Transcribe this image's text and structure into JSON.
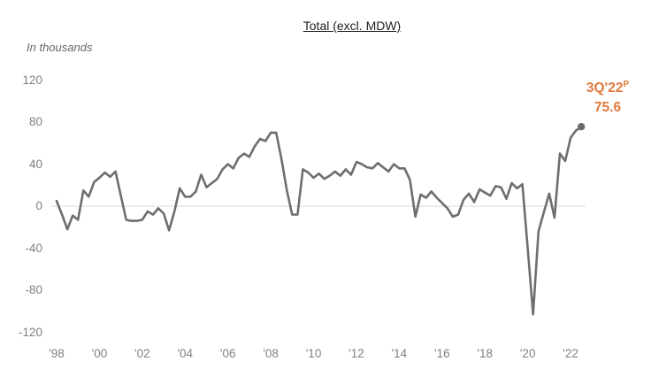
{
  "title": "Total (excl. MDW)",
  "y_axis_note": "In thousands",
  "annotation": {
    "quarter_label": "3Q'22",
    "superscript": "P",
    "value": "75.6"
  },
  "colors": {
    "line": "#6e6e6e",
    "marker": "#6a6a6a",
    "accent_orange": "#e0793c",
    "axis_text": "#808080",
    "zero_line": "#d9d9d9",
    "title_text": "#1f1f1f"
  },
  "chart_data": {
    "type": "line",
    "title": "Total (excl. MDW)",
    "unit_note": "In thousands",
    "frequency": "quarterly",
    "x_start": "1Q'98",
    "x_end": "3Q'22",
    "x_tick_labels": [
      "'98",
      "'00",
      "'02",
      "'04",
      "'06",
      "'08",
      "'10",
      "'12",
      "'14",
      "'16",
      "'18",
      "'20",
      "'22"
    ],
    "y_ticks": [
      120,
      80,
      40,
      0,
      -40,
      -80,
      -120
    ],
    "ylim": [
      -120,
      120
    ],
    "grid": "zero-line-only",
    "legend": "none",
    "marker_on_last_point": true,
    "last_point_label": "3Q'22 P",
    "last_point_value": 75.6,
    "values": [
      5,
      -8,
      -22,
      -9,
      -13,
      15,
      9,
      23,
      27,
      32,
      28,
      33,
      10,
      -13,
      -14,
      -14,
      -13,
      -5,
      -8,
      -2,
      -7,
      -23,
      -5,
      17,
      9,
      9,
      14,
      30,
      18,
      22,
      26,
      35,
      40,
      36,
      46,
      50,
      47,
      57,
      64,
      62,
      70,
      70,
      45,
      15,
      -8,
      -8,
      35,
      32,
      27,
      31,
      26,
      29,
      33,
      29,
      35,
      30,
      42,
      40,
      37,
      36,
      41,
      37,
      33,
      40,
      36,
      36,
      25,
      -10,
      11,
      8,
      14,
      8,
      3,
      -2,
      -10,
      -8,
      6,
      12,
      4,
      16,
      13,
      10,
      19,
      18,
      7,
      22,
      17,
      21,
      -41,
      -103,
      -24,
      -6,
      12,
      -11,
      50,
      43,
      65,
      72,
      75.6
    ]
  }
}
